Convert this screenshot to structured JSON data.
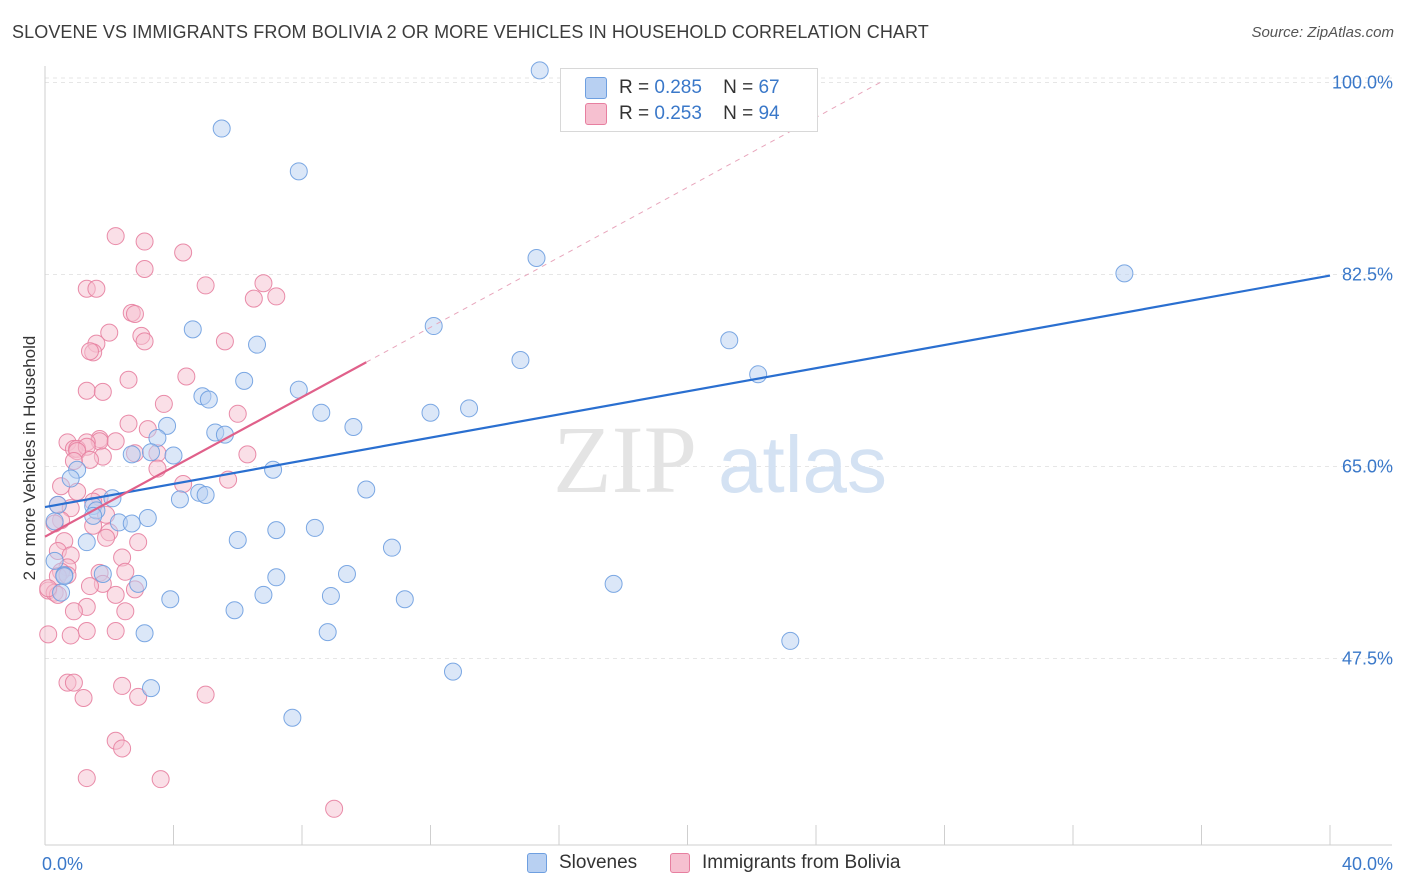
{
  "title": "SLOVENE VS IMMIGRANTS FROM BOLIVIA 2 OR MORE VEHICLES IN HOUSEHOLD CORRELATION CHART",
  "source": "Source: ZipAtlas.com",
  "watermark": {
    "zip": "ZIP",
    "atlas": "atlas"
  },
  "legend": {
    "r_label": "R =",
    "n_label": "N =",
    "series": [
      {
        "name": "Slovenes",
        "r": "0.285",
        "n": "67",
        "color": "#6e9fe0",
        "fill": "#b8d0f2"
      },
      {
        "name": "Immigrants from Bolivia",
        "r": "0.253",
        "n": "94",
        "color": "#e77fa0",
        "fill": "#f6c0d0"
      }
    ]
  },
  "chart_data": {
    "type": "scatter",
    "title": "SLOVENE VS IMMIGRANTS FROM BOLIVIA 2 OR MORE VEHICLES IN HOUSEHOLD CORRELATION CHART",
    "xlabel": "",
    "ylabel": "2 or more Vehicles in Household",
    "xlim": [
      0,
      40
    ],
    "ylim": [
      30.5,
      101.5
    ],
    "x_tick_labels": [
      {
        "x": 0,
        "label": "0.0%"
      },
      {
        "x": 40,
        "label": "40.0%"
      }
    ],
    "y_tick_labels": [
      {
        "y": 100,
        "label": "100.0%"
      },
      {
        "y": 82.5,
        "label": "82.5%"
      },
      {
        "y": 65,
        "label": "65.0%"
      },
      {
        "y": 47.5,
        "label": "47.5%"
      }
    ],
    "x_minor_ticks": [
      0,
      4,
      8,
      12,
      16,
      20,
      24,
      28,
      32,
      36,
      40
    ],
    "grid": true,
    "series": [
      {
        "name": "Slovenes",
        "color": "#6e9fe0",
        "trend": {
          "x": [
            0,
            40
          ],
          "y": [
            61.3,
            82.4
          ],
          "color": "#2a6fd0"
        },
        "points": [
          [
            15.4,
            101.1
          ],
          [
            5.5,
            95.8
          ],
          [
            7.9,
            91.9
          ],
          [
            15.3,
            84.0
          ],
          [
            33.6,
            82.6
          ],
          [
            12.1,
            77.8
          ],
          [
            4.6,
            77.5
          ],
          [
            6.6,
            76.1
          ],
          [
            21.3,
            76.5
          ],
          [
            14.8,
            74.7
          ],
          [
            22.2,
            73.4
          ],
          [
            6.2,
            72.8
          ],
          [
            7.9,
            72.0
          ],
          [
            4.9,
            71.4
          ],
          [
            5.1,
            71.1
          ],
          [
            13.2,
            70.3
          ],
          [
            12.0,
            69.9
          ],
          [
            8.6,
            69.9
          ],
          [
            9.6,
            68.6
          ],
          [
            3.8,
            68.7
          ],
          [
            5.3,
            68.1
          ],
          [
            5.6,
            67.9
          ],
          [
            3.5,
            67.6
          ],
          [
            3.3,
            66.3
          ],
          [
            2.7,
            66.1
          ],
          [
            4.0,
            66.0
          ],
          [
            1.0,
            64.7
          ],
          [
            7.1,
            64.7
          ],
          [
            0.8,
            63.9
          ],
          [
            10.0,
            62.9
          ],
          [
            4.8,
            62.6
          ],
          [
            5.0,
            62.4
          ],
          [
            4.2,
            62.0
          ],
          [
            2.1,
            62.1
          ],
          [
            0.4,
            61.5
          ],
          [
            1.5,
            61.4
          ],
          [
            1.6,
            61.0
          ],
          [
            1.5,
            60.5
          ],
          [
            3.2,
            60.3
          ],
          [
            0.3,
            60.0
          ],
          [
            2.3,
            59.9
          ],
          [
            2.7,
            59.8
          ],
          [
            8.4,
            59.4
          ],
          [
            7.2,
            59.2
          ],
          [
            6.0,
            58.3
          ],
          [
            1.3,
            58.1
          ],
          [
            10.8,
            57.6
          ],
          [
            0.3,
            56.4
          ],
          [
            9.4,
            55.2
          ],
          [
            7.2,
            54.9
          ],
          [
            0.6,
            55.1
          ],
          [
            1.8,
            55.2
          ],
          [
            0.6,
            55.0
          ],
          [
            2.9,
            54.3
          ],
          [
            0.5,
            53.5
          ],
          [
            17.7,
            54.3
          ],
          [
            6.8,
            53.3
          ],
          [
            8.9,
            53.2
          ],
          [
            11.2,
            52.9
          ],
          [
            3.9,
            52.9
          ],
          [
            5.9,
            51.9
          ],
          [
            3.1,
            49.8
          ],
          [
            8.8,
            49.9
          ],
          [
            23.2,
            49.1
          ],
          [
            12.7,
            46.3
          ],
          [
            3.3,
            44.8
          ],
          [
            7.7,
            42.1
          ]
        ]
      },
      {
        "name": "Immigrants from Bolivia",
        "color": "#e77fa0",
        "trend": {
          "x": [
            0,
            10
          ],
          "y": [
            58.6,
            74.5
          ],
          "color": "#e0608a",
          "extended_dashed_to": {
            "x": 26,
            "y": 100
          }
        },
        "points": [
          [
            2.2,
            86.0
          ],
          [
            3.1,
            85.5
          ],
          [
            4.3,
            84.5
          ],
          [
            3.1,
            83.0
          ],
          [
            5.0,
            81.5
          ],
          [
            6.8,
            81.7
          ],
          [
            1.3,
            81.2
          ],
          [
            1.6,
            81.2
          ],
          [
            6.5,
            80.3
          ],
          [
            7.2,
            80.5
          ],
          [
            2.7,
            79.0
          ],
          [
            2.8,
            78.9
          ],
          [
            2.0,
            77.2
          ],
          [
            3.0,
            76.9
          ],
          [
            5.6,
            76.4
          ],
          [
            3.1,
            76.4
          ],
          [
            1.6,
            76.2
          ],
          [
            1.5,
            75.4
          ],
          [
            1.4,
            75.5
          ],
          [
            4.4,
            73.2
          ],
          [
            2.6,
            72.9
          ],
          [
            1.3,
            71.9
          ],
          [
            1.8,
            71.8
          ],
          [
            6.0,
            69.8
          ],
          [
            3.7,
            70.7
          ],
          [
            2.6,
            68.9
          ],
          [
            3.2,
            68.4
          ],
          [
            1.7,
            67.5
          ],
          [
            1.7,
            67.3
          ],
          [
            2.2,
            67.3
          ],
          [
            1.3,
            67.2
          ],
          [
            0.7,
            67.2
          ],
          [
            3.5,
            66.2
          ],
          [
            0.9,
            66.6
          ],
          [
            1.0,
            66.6
          ],
          [
            1.3,
            66.8
          ],
          [
            2.8,
            66.2
          ],
          [
            1.0,
            66.4
          ],
          [
            6.3,
            66.1
          ],
          [
            1.8,
            65.9
          ],
          [
            1.4,
            65.6
          ],
          [
            0.9,
            65.5
          ],
          [
            3.5,
            64.8
          ],
          [
            4.3,
            63.4
          ],
          [
            5.7,
            63.8
          ],
          [
            0.5,
            63.2
          ],
          [
            1.0,
            62.7
          ],
          [
            1.7,
            62.2
          ],
          [
            1.5,
            61.8
          ],
          [
            0.4,
            61.5
          ],
          [
            0.8,
            61.2
          ],
          [
            1.9,
            60.6
          ],
          [
            0.5,
            60.1
          ],
          [
            0.3,
            59.8
          ],
          [
            1.5,
            59.6
          ],
          [
            2.0,
            59.0
          ],
          [
            1.9,
            58.5
          ],
          [
            0.6,
            58.2
          ],
          [
            2.9,
            58.1
          ],
          [
            0.4,
            57.3
          ],
          [
            0.8,
            56.9
          ],
          [
            2.4,
            56.7
          ],
          [
            0.7,
            55.8
          ],
          [
            0.5,
            55.4
          ],
          [
            1.7,
            55.3
          ],
          [
            0.4,
            55.0
          ],
          [
            0.7,
            55.1
          ],
          [
            2.5,
            55.4
          ],
          [
            1.8,
            54.3
          ],
          [
            1.4,
            54.1
          ],
          [
            0.1,
            53.7
          ],
          [
            0.3,
            53.5
          ],
          [
            2.2,
            53.3
          ],
          [
            2.8,
            53.8
          ],
          [
            0.4,
            53.3
          ],
          [
            1.3,
            52.2
          ],
          [
            0.9,
            51.8
          ],
          [
            2.5,
            51.8
          ],
          [
            0.1,
            49.7
          ],
          [
            2.2,
            50.0
          ],
          [
            0.8,
            49.6
          ],
          [
            1.3,
            50.0
          ],
          [
            0.7,
            45.3
          ],
          [
            0.9,
            45.3
          ],
          [
            2.4,
            45.0
          ],
          [
            1.2,
            43.9
          ],
          [
            2.9,
            44.0
          ],
          [
            5.0,
            44.2
          ],
          [
            2.2,
            40.0
          ],
          [
            2.4,
            39.3
          ],
          [
            1.3,
            36.6
          ],
          [
            3.6,
            36.5
          ],
          [
            9.0,
            33.8
          ],
          [
            0.1,
            53.9
          ]
        ]
      }
    ]
  }
}
